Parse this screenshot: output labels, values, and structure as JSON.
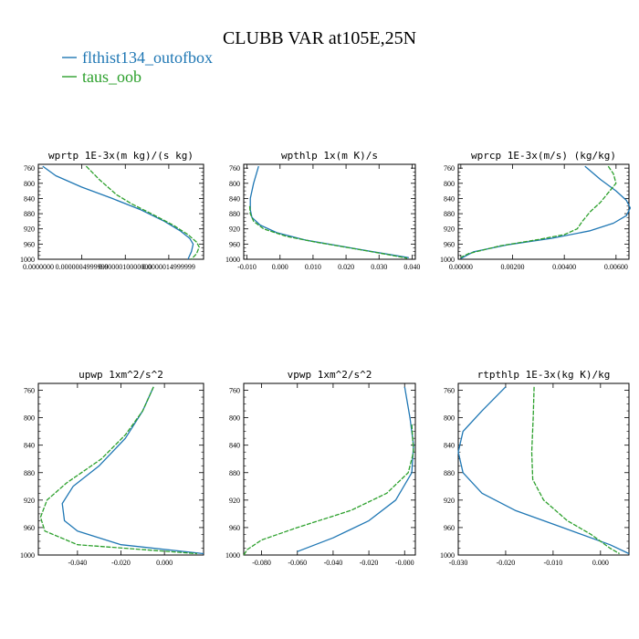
{
  "figure": {
    "title": "CLUBB VAR at105E,25N",
    "legend": [
      {
        "label": "flthist134_outofbox",
        "color": "#1f77b4"
      },
      {
        "label": "taus_oob",
        "color": "#2ca02c"
      }
    ]
  },
  "chart_data": [
    {
      "type": "line",
      "title": "wprtp  1E-3x(m kg)/(s kg)",
      "ylim": [
        1000,
        750
      ],
      "y_inverted": true,
      "yticks": [
        760,
        800,
        840,
        880,
        920,
        960,
        1000
      ],
      "xlim": [
        0.0,
        1.9e-06
      ],
      "xticks": [
        0.0,
        5e-07,
        1e-06,
        1.5e-06
      ],
      "xtick_labels": [
        "0.0000000",
        "0.0000004999999",
        "0.0000010000000",
        "0.0000014999999"
      ],
      "legend": "top-left",
      "series": [
        {
          "name": "flthist134_outofbox",
          "color": "#1f77b4",
          "dashed": false,
          "points": [
            [
              5e-08,
              755
            ],
            [
              2e-07,
              780
            ],
            [
              5e-07,
              810
            ],
            [
              8.5e-07,
              840
            ],
            [
              1.18e-06,
              870
            ],
            [
              1.45e-06,
              900
            ],
            [
              1.63e-06,
              925
            ],
            [
              1.74e-06,
              945
            ],
            [
              1.78e-06,
              960
            ],
            [
              1.76e-06,
              980
            ],
            [
              1.72e-06,
              1000
            ]
          ]
        },
        {
          "name": "taus_oob",
          "color": "#2ca02c",
          "dashed": true,
          "points": [
            [
              5.5e-07,
              755
            ],
            [
              7e-07,
              790
            ],
            [
              9e-07,
              830
            ],
            [
              1.08e-06,
              855
            ],
            [
              1.3e-06,
              880
            ],
            [
              1.55e-06,
              910
            ],
            [
              1.72e-06,
              935
            ],
            [
              1.82e-06,
              955
            ],
            [
              1.85e-06,
              968
            ],
            [
              1.82e-06,
              985
            ],
            [
              1.76e-06,
              1000
            ]
          ]
        }
      ]
    },
    {
      "type": "line",
      "title": "wpthlp  1x(m K)/s",
      "ylim": [
        1000,
        750
      ],
      "y_inverted": true,
      "yticks": [
        760,
        800,
        840,
        880,
        920,
        960,
        1000
      ],
      "xlim": [
        -0.011,
        0.041
      ],
      "xticks": [
        -0.01,
        0.0,
        0.01,
        0.02,
        0.03,
        0.04
      ],
      "xtick_labels": [
        "-0.010",
        "0.000",
        "0.010",
        "0.020",
        "0.030",
        "0.040"
      ],
      "series": [
        {
          "name": "flthist134_outofbox",
          "color": "#1f77b4",
          "dashed": false,
          "points": [
            [
              -0.0065,
              755
            ],
            [
              -0.008,
              800
            ],
            [
              -0.009,
              840
            ],
            [
              -0.009,
              870
            ],
            [
              -0.0085,
              890
            ],
            [
              -0.006,
              910
            ],
            [
              -0.001,
              930
            ],
            [
              0.008,
              950
            ],
            [
              0.018,
              965
            ],
            [
              0.028,
              980
            ],
            [
              0.039,
              996
            ]
          ]
        },
        {
          "name": "taus_oob",
          "color": "#2ca02c",
          "dashed": true,
          "points": [
            [
              -0.0092,
              860
            ],
            [
              -0.009,
              880
            ],
            [
              -0.008,
              900
            ],
            [
              -0.005,
              920
            ],
            [
              0.002,
              940
            ],
            [
              0.011,
              955
            ],
            [
              0.021,
              970
            ],
            [
              0.031,
              985
            ],
            [
              0.0385,
              997
            ]
          ]
        }
      ]
    },
    {
      "type": "line",
      "title": "wprcp  1E-3x(m/s) (kg/kg)",
      "ylim": [
        1000,
        750
      ],
      "y_inverted": true,
      "yticks": [
        760,
        800,
        840,
        880,
        920,
        960,
        1000
      ],
      "xlim": [
        -0.0001,
        0.0065
      ],
      "xticks": [
        0.0,
        0.002,
        0.004,
        0.006
      ],
      "xtick_labels": [
        "0.00000",
        "0.00200",
        "0.00400",
        "0.00600"
      ],
      "series": [
        {
          "name": "flthist134_outofbox",
          "color": "#1f77b4",
          "dashed": false,
          "points": [
            [
              0.0048,
              755
            ],
            [
              0.0054,
              790
            ],
            [
              0.006,
              820
            ],
            [
              0.0064,
              845
            ],
            [
              0.00655,
              865
            ],
            [
              0.0064,
              885
            ],
            [
              0.0059,
              905
            ],
            [
              0.005,
              925
            ],
            [
              0.0035,
              945
            ],
            [
              0.0018,
              962
            ],
            [
              0.0005,
              980
            ],
            [
              0.0,
              998
            ]
          ]
        },
        {
          "name": "taus_oob",
          "color": "#2ca02c",
          "dashed": true,
          "points": [
            [
              0.0057,
              755
            ],
            [
              0.0059,
              775
            ],
            [
              0.006,
              800
            ],
            [
              0.0057,
              825
            ],
            [
              0.0054,
              850
            ],
            [
              0.005,
              875
            ],
            [
              0.0047,
              900
            ],
            [
              0.0045,
              920
            ],
            [
              0.004,
              935
            ],
            [
              0.003,
              948
            ],
            [
              0.0015,
              965
            ],
            [
              0.0003,
              985
            ],
            [
              0.0,
              995
            ]
          ]
        }
      ]
    },
    {
      "type": "line",
      "title": "upwp  1xm^2/s^2",
      "ylim": [
        1000,
        750
      ],
      "y_inverted": true,
      "yticks": [
        760,
        800,
        840,
        880,
        920,
        960,
        1000
      ],
      "xlim": [
        -0.058,
        0.018
      ],
      "xticks": [
        -0.04,
        -0.02,
        0.0
      ],
      "xtick_labels": [
        "-0.040",
        "-0.020",
        "0.000"
      ],
      "series": [
        {
          "name": "flthist134_outofbox",
          "color": "#1f77b4",
          "dashed": false,
          "points": [
            [
              -0.005,
              755
            ],
            [
              -0.01,
              790
            ],
            [
              -0.018,
              830
            ],
            [
              -0.03,
              870
            ],
            [
              -0.042,
              900
            ],
            [
              -0.047,
              925
            ],
            [
              -0.046,
              950
            ],
            [
              -0.04,
              965
            ],
            [
              -0.02,
              985
            ],
            [
              0.018,
              998
            ]
          ]
        },
        {
          "name": "taus_oob",
          "color": "#2ca02c",
          "dashed": true,
          "points": [
            [
              -0.005,
              755
            ],
            [
              -0.01,
              790
            ],
            [
              -0.018,
              825
            ],
            [
              -0.029,
              860
            ],
            [
              -0.045,
              895
            ],
            [
              -0.054,
              920
            ],
            [
              -0.057,
              945
            ],
            [
              -0.055,
              965
            ],
            [
              -0.04,
              985
            ],
            [
              0.015,
              998
            ]
          ]
        }
      ]
    },
    {
      "type": "line",
      "title": "vpwp  1xm^2/s^2",
      "ylim": [
        1000,
        750
      ],
      "y_inverted": true,
      "yticks": [
        760,
        800,
        840,
        880,
        920,
        960,
        1000
      ],
      "xlim": [
        -0.09,
        0.006
      ],
      "xticks": [
        -0.08,
        -0.06,
        -0.04,
        -0.02,
        0.0
      ],
      "xtick_labels": [
        "-0.080",
        "-0.060",
        "-0.040",
        "-0.020",
        "-0.000"
      ],
      "series": [
        {
          "name": "flthist134_outofbox",
          "color": "#1f77b4",
          "dashed": false,
          "points": [
            [
              0.0,
              755
            ],
            [
              0.003,
              800
            ],
            [
              0.005,
              840
            ],
            [
              0.004,
              880
            ],
            [
              -0.005,
              920
            ],
            [
              -0.02,
              950
            ],
            [
              -0.04,
              975
            ],
            [
              -0.06,
              995
            ]
          ]
        },
        {
          "name": "taus_oob",
          "color": "#2ca02c",
          "dashed": true,
          "points": [
            [
              0.004,
              810
            ],
            [
              0.005,
              850
            ],
            [
              0.002,
              880
            ],
            [
              -0.01,
              910
            ],
            [
              -0.03,
              935
            ],
            [
              -0.06,
              960
            ],
            [
              -0.08,
              978
            ],
            [
              -0.088,
              992
            ],
            [
              -0.09,
              1000
            ]
          ]
        }
      ]
    },
    {
      "type": "line",
      "title": "rtpthlp  1E-3x(kg K)/kg",
      "ylim": [
        1000,
        750
      ],
      "y_inverted": true,
      "yticks": [
        760,
        800,
        840,
        880,
        920,
        960,
        1000
      ],
      "xlim": [
        -0.03,
        0.006
      ],
      "xticks": [
        -0.03,
        -0.02,
        -0.01,
        0.0
      ],
      "xtick_labels": [
        "-0.030",
        "-0.020",
        "-0.010",
        "0.000"
      ],
      "series": [
        {
          "name": "flthist134_outofbox",
          "color": "#1f77b4",
          "dashed": false,
          "points": [
            [
              -0.02,
              755
            ],
            [
              -0.025,
              790
            ],
            [
              -0.029,
              820
            ],
            [
              -0.03,
              850
            ],
            [
              -0.029,
              880
            ],
            [
              -0.025,
              910
            ],
            [
              -0.018,
              935
            ],
            [
              -0.008,
              960
            ],
            [
              0.002,
              985
            ],
            [
              0.006,
              998
            ]
          ]
        },
        {
          "name": "taus_oob",
          "color": "#2ca02c",
          "dashed": true,
          "points": [
            [
              -0.014,
              755
            ],
            [
              -0.0142,
              800
            ],
            [
              -0.0145,
              850
            ],
            [
              -0.0143,
              890
            ],
            [
              -0.012,
              920
            ],
            [
              -0.007,
              950
            ],
            [
              -0.002,
              970
            ],
            [
              0.002,
              990
            ],
            [
              0.004,
              998
            ]
          ]
        }
      ]
    }
  ]
}
